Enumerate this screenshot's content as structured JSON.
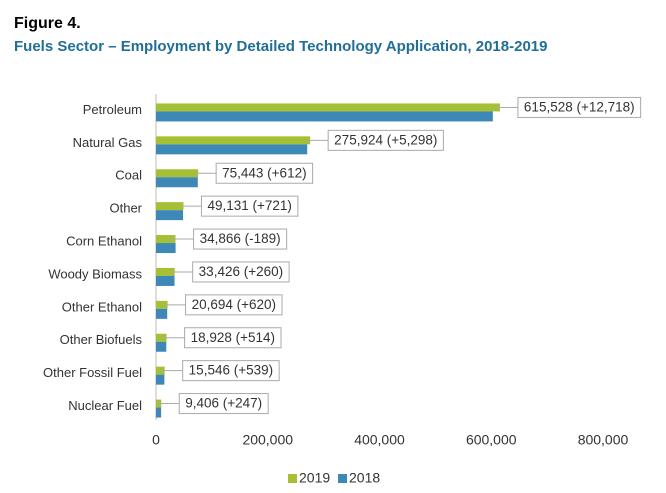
{
  "chart_data": {
    "type": "hbar",
    "title": "Figure 4.",
    "subtitle": "Fuels Sector – Employment by Detailed Technology Application, 2018-2019",
    "categories": [
      "Petroleum",
      "Natural Gas",
      "Coal",
      "Other",
      "Corn Ethanol",
      "Woody Biomass",
      "Other Ethanol",
      "Other Biofuels",
      "Other Fossil Fuel",
      "Nuclear Fuel"
    ],
    "series": [
      {
        "name": "2019",
        "color": "#a5c034",
        "values": [
          615528,
          275924,
          75443,
          49131,
          34866,
          33426,
          20694,
          18928,
          15546,
          9406
        ],
        "value_labels": [
          "615,528 (+12,718)",
          "275,924 (+5,298)",
          "75,443 (+612)",
          "49,131 (+721)",
          "34,866 (-189)",
          "33,426 (+260)",
          "20,694 (+620)",
          "18,928 (+514)",
          "15,546 (+539)",
          "9,406 (+247)"
        ]
      },
      {
        "name": "2018",
        "color": "#3d88b6",
        "values": [
          602810,
          270626,
          74831,
          48410,
          35055,
          33166,
          20074,
          18414,
          15007,
          9159
        ]
      }
    ],
    "xlim": [
      0,
      800000
    ],
    "xticks": [
      0,
      {
        "value": 200000,
        "label": "200,000"
      },
      {
        "value": 400000,
        "label": "400,000"
      },
      {
        "value": 600000,
        "label": "600,000"
      },
      {
        "value": 800000,
        "label": "800,000"
      }
    ],
    "grid": false
  }
}
